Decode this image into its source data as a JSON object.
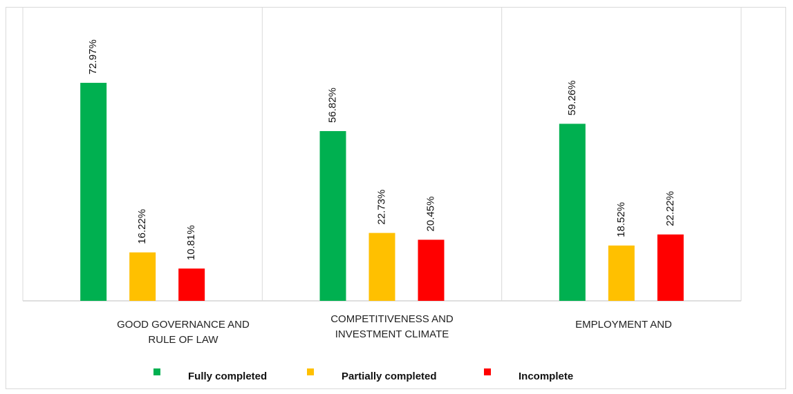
{
  "chart_data": {
    "type": "bar",
    "categories": [
      "GOOD GOVERNANCE AND\nRULE OF LAW",
      "COMPETITIVENESS AND\nINVESTMENT CLIMATE",
      "EMPLOYMENT AND"
    ],
    "series": [
      {
        "name": "Fully completed",
        "color": "#00b050",
        "values": [
          72.97,
          56.82,
          59.26
        ]
      },
      {
        "name": "Partially completed",
        "color": "#ffc000",
        "values": [
          16.22,
          22.73,
          18.52
        ]
      },
      {
        "name": "Incomplete",
        "color": "#ff0000",
        "values": [
          10.81,
          20.45,
          22.22
        ]
      }
    ],
    "value_labels": [
      [
        "72.97%",
        "56.82%",
        "59.26%"
      ],
      [
        "16.22%",
        "22.73%",
        "18.52%"
      ],
      [
        "10.81%",
        "20.45%",
        "22.22%"
      ]
    ],
    "ylim": [
      0,
      100
    ],
    "grid": false,
    "legend_position": "bottom"
  }
}
